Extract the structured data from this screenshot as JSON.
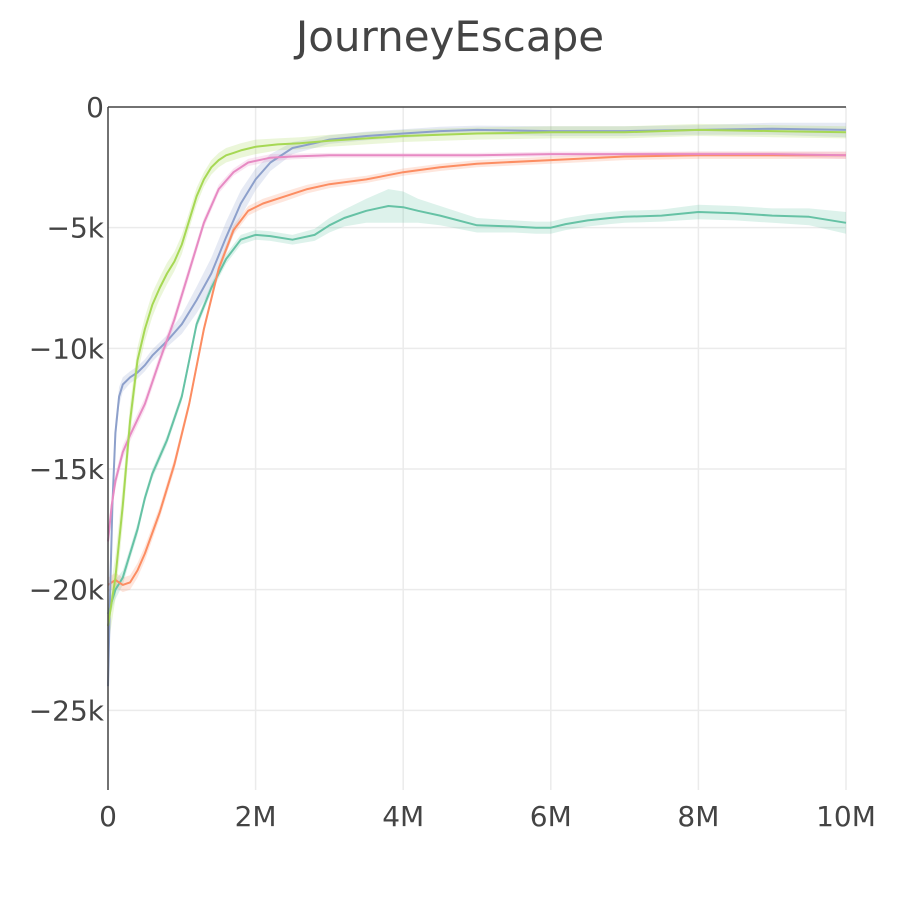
{
  "chart_data": {
    "type": "line",
    "title": "JourneyEscape",
    "xlabel": "",
    "ylabel": "",
    "xlim": [
      0,
      10000000
    ],
    "ylim": [
      -28300,
      0
    ],
    "grid": true,
    "legend": "none",
    "x_ticks": [
      {
        "value": 0,
        "label": "0"
      },
      {
        "value": 2000000,
        "label": "2M"
      },
      {
        "value": 4000000,
        "label": "4M"
      },
      {
        "value": 6000000,
        "label": "6M"
      },
      {
        "value": 8000000,
        "label": "8M"
      },
      {
        "value": 10000000,
        "label": "10M"
      }
    ],
    "y_ticks": [
      {
        "value": 0,
        "label": "0"
      },
      {
        "value": -5000,
        "label": "−5k"
      },
      {
        "value": -10000,
        "label": "−10k"
      },
      {
        "value": -15000,
        "label": "−15k"
      },
      {
        "value": -20000,
        "label": "−20k"
      },
      {
        "value": -25000,
        "label": "−25k"
      }
    ],
    "series": [
      {
        "color": "#66c2a5",
        "x": [
          0,
          100000,
          200000,
          300000,
          400000,
          500000,
          600000,
          800000,
          1000000,
          1100000,
          1200000,
          1400000,
          1600000,
          1800000,
          2000000,
          2200000,
          2500000,
          2800000,
          3000000,
          3200000,
          3500000,
          3800000,
          4000000,
          4200000,
          4500000,
          5000000,
          5500000,
          5800000,
          6000000,
          6200000,
          6500000,
          6800000,
          7000000,
          7500000,
          8000000,
          8500000,
          9000000,
          9500000,
          10000000
        ],
        "y": [
          -21000,
          -20000,
          -19500,
          -18500,
          -17500,
          -16200,
          -15200,
          -13800,
          -12000,
          -10500,
          -9000,
          -7500,
          -6300,
          -5500,
          -5300,
          -5350,
          -5500,
          -5300,
          -4900,
          -4600,
          -4300,
          -4100,
          -4150,
          -4300,
          -4500,
          -4900,
          -4950,
          -5000,
          -5000,
          -4850,
          -4700,
          -4600,
          -4550,
          -4500,
          -4350,
          -4400,
          -4500,
          -4550,
          -4800
        ],
        "band": [
          300,
          400,
          300,
          250,
          250,
          200,
          200,
          200,
          200,
          200,
          200,
          200,
          200,
          200,
          200,
          200,
          200,
          250,
          300,
          350,
          500,
          700,
          650,
          500,
          400,
          300,
          250,
          250,
          250,
          250,
          250,
          250,
          250,
          250,
          300,
          300,
          300,
          350,
          450
        ]
      },
      {
        "color": "#fc8d62",
        "x": [
          0,
          100000,
          200000,
          300000,
          400000,
          500000,
          700000,
          900000,
          1100000,
          1300000,
          1500000,
          1700000,
          1900000,
          2100000,
          2400000,
          2700000,
          3000000,
          3500000,
          4000000,
          4500000,
          5000000,
          6000000,
          7000000,
          8000000,
          9000000,
          10000000
        ],
        "y": [
          -19800,
          -19600,
          -19800,
          -19700,
          -19200,
          -18500,
          -16800,
          -14800,
          -12300,
          -9200,
          -6700,
          -5100,
          -4300,
          -4000,
          -3700,
          -3400,
          -3200,
          -3000,
          -2700,
          -2500,
          -2350,
          -2200,
          -2050,
          -2000,
          -2000,
          -2000
        ],
        "band": [
          300,
          300,
          300,
          300,
          300,
          300,
          250,
          250,
          200,
          200,
          200,
          200,
          200,
          200,
          200,
          180,
          160,
          150,
          150,
          150,
          150,
          150,
          150,
          150,
          150,
          150
        ]
      },
      {
        "color": "#8da0cb",
        "x": [
          0,
          30000,
          60000,
          100000,
          150000,
          200000,
          300000,
          400000,
          500000,
          600000,
          800000,
          1000000,
          1200000,
          1400000,
          1600000,
          1800000,
          2000000,
          2200000,
          2500000,
          2800000,
          3000000,
          3500000,
          4000000,
          4500000,
          5000000,
          6000000,
          7000000,
          8000000,
          9000000,
          10000000
        ],
        "y": [
          -24000,
          -20000,
          -16500,
          -13500,
          -12000,
          -11500,
          -11200,
          -11000,
          -10700,
          -10300,
          -9700,
          -9000,
          -8000,
          -6900,
          -5400,
          -4000,
          -3000,
          -2300,
          -1700,
          -1500,
          -1350,
          -1200,
          -1100,
          -1000,
          -950,
          -1000,
          -1000,
          -950,
          -900,
          -950
        ],
        "band": [
          800,
          700,
          600,
          500,
          400,
          300,
          250,
          250,
          250,
          250,
          250,
          400,
          550,
          650,
          650,
          550,
          450,
          350,
          250,
          200,
          180,
          180,
          180,
          180,
          180,
          200,
          200,
          200,
          250,
          300
        ]
      },
      {
        "color": "#e78ac3",
        "x": [
          0,
          50000,
          100000,
          200000,
          300000,
          500000,
          700000,
          900000,
          1100000,
          1300000,
          1500000,
          1700000,
          1900000,
          2200000,
          2500000,
          3000000,
          4000000,
          5000000,
          6000000,
          7000000,
          8000000,
          9000000,
          10000000
        ],
        "y": [
          -18000,
          -16500,
          -15500,
          -14300,
          -13600,
          -12300,
          -10500,
          -8800,
          -6800,
          -4800,
          -3400,
          -2700,
          -2300,
          -2100,
          -2050,
          -2000,
          -2000,
          -2000,
          -1950,
          -1950,
          -1950,
          -1950,
          -2000
        ],
        "band": [
          400,
          350,
          300,
          280,
          250,
          250,
          250,
          250,
          250,
          200,
          180,
          150,
          150,
          150,
          120,
          100,
          100,
          100,
          100,
          100,
          100,
          100,
          150
        ]
      },
      {
        "color": "#a6d854",
        "x": [
          0,
          100000,
          200000,
          300000,
          400000,
          500000,
          600000,
          700000,
          800000,
          900000,
          1000000,
          1100000,
          1200000,
          1300000,
          1400000,
          1500000,
          1600000,
          1700000,
          1800000,
          2000000,
          2300000,
          2600000,
          3000000,
          3500000,
          4000000,
          5000000,
          6000000,
          7000000,
          8000000,
          9000000,
          10000000
        ],
        "y": [
          -21500,
          -19500,
          -16500,
          -13000,
          -10500,
          -9200,
          -8200,
          -7500,
          -6900,
          -6400,
          -5700,
          -4700,
          -3700,
          -3000,
          -2500,
          -2200,
          -2000,
          -1900,
          -1800,
          -1650,
          -1550,
          -1500,
          -1400,
          -1300,
          -1200,
          -1100,
          -1050,
          -1050,
          -950,
          -1000,
          -1050
        ],
        "band": [
          900,
          900,
          800,
          700,
          550,
          500,
          500,
          450,
          450,
          400,
          400,
          350,
          350,
          300,
          300,
          300,
          300,
          300,
          300,
          300,
          250,
          250,
          250,
          250,
          250,
          250,
          250,
          250,
          250,
          250,
          250
        ]
      }
    ]
  }
}
